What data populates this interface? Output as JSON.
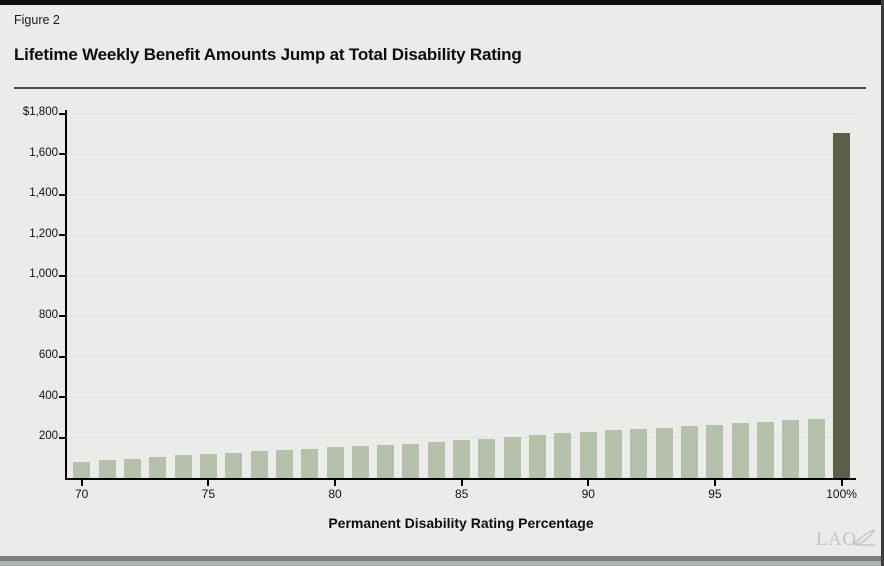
{
  "figure_label": "Figure 2",
  "title": "Lifetime Weekly Benefit Amounts Jump at Total Disability Rating",
  "branding": {
    "logo_text": "LAO"
  },
  "chart_data": {
    "type": "bar",
    "title": "Lifetime Weekly Benefit Amounts Jump at Total Disability Rating",
    "xlabel": "Permanent Disability Rating Percentage",
    "ylabel": "",
    "x": [
      70,
      71,
      72,
      73,
      74,
      75,
      76,
      77,
      78,
      79,
      80,
      81,
      82,
      83,
      84,
      85,
      86,
      87,
      88,
      89,
      90,
      91,
      92,
      93,
      94,
      95,
      96,
      97,
      98,
      99,
      100
    ],
    "values": [
      80,
      88,
      96,
      104,
      111,
      118,
      125,
      131,
      138,
      145,
      151,
      157,
      163,
      170,
      177,
      185,
      193,
      202,
      210,
      220,
      228,
      235,
      242,
      248,
      255,
      262,
      270,
      278,
      285,
      292,
      1700
    ],
    "ylim": [
      0,
      1800
    ],
    "ytick_values": [
      1800,
      1600,
      1400,
      1200,
      1000,
      800,
      600,
      400,
      200
    ],
    "ytick_labels": [
      "$1,800",
      "1,600",
      "1,400",
      "1,200",
      "1,000",
      "800",
      "600",
      "400",
      "200"
    ],
    "xtick_values": [
      70,
      75,
      80,
      85,
      90,
      95,
      100
    ],
    "xtick_labels": [
      "70",
      "75",
      "80",
      "85",
      "90",
      "95",
      "100%"
    ],
    "grid": true,
    "legend": "none",
    "bar_color": "#b6c1ab",
    "highlight_color": "#5c604a",
    "highlight_x": 100,
    "background_color": "#ebecea"
  }
}
